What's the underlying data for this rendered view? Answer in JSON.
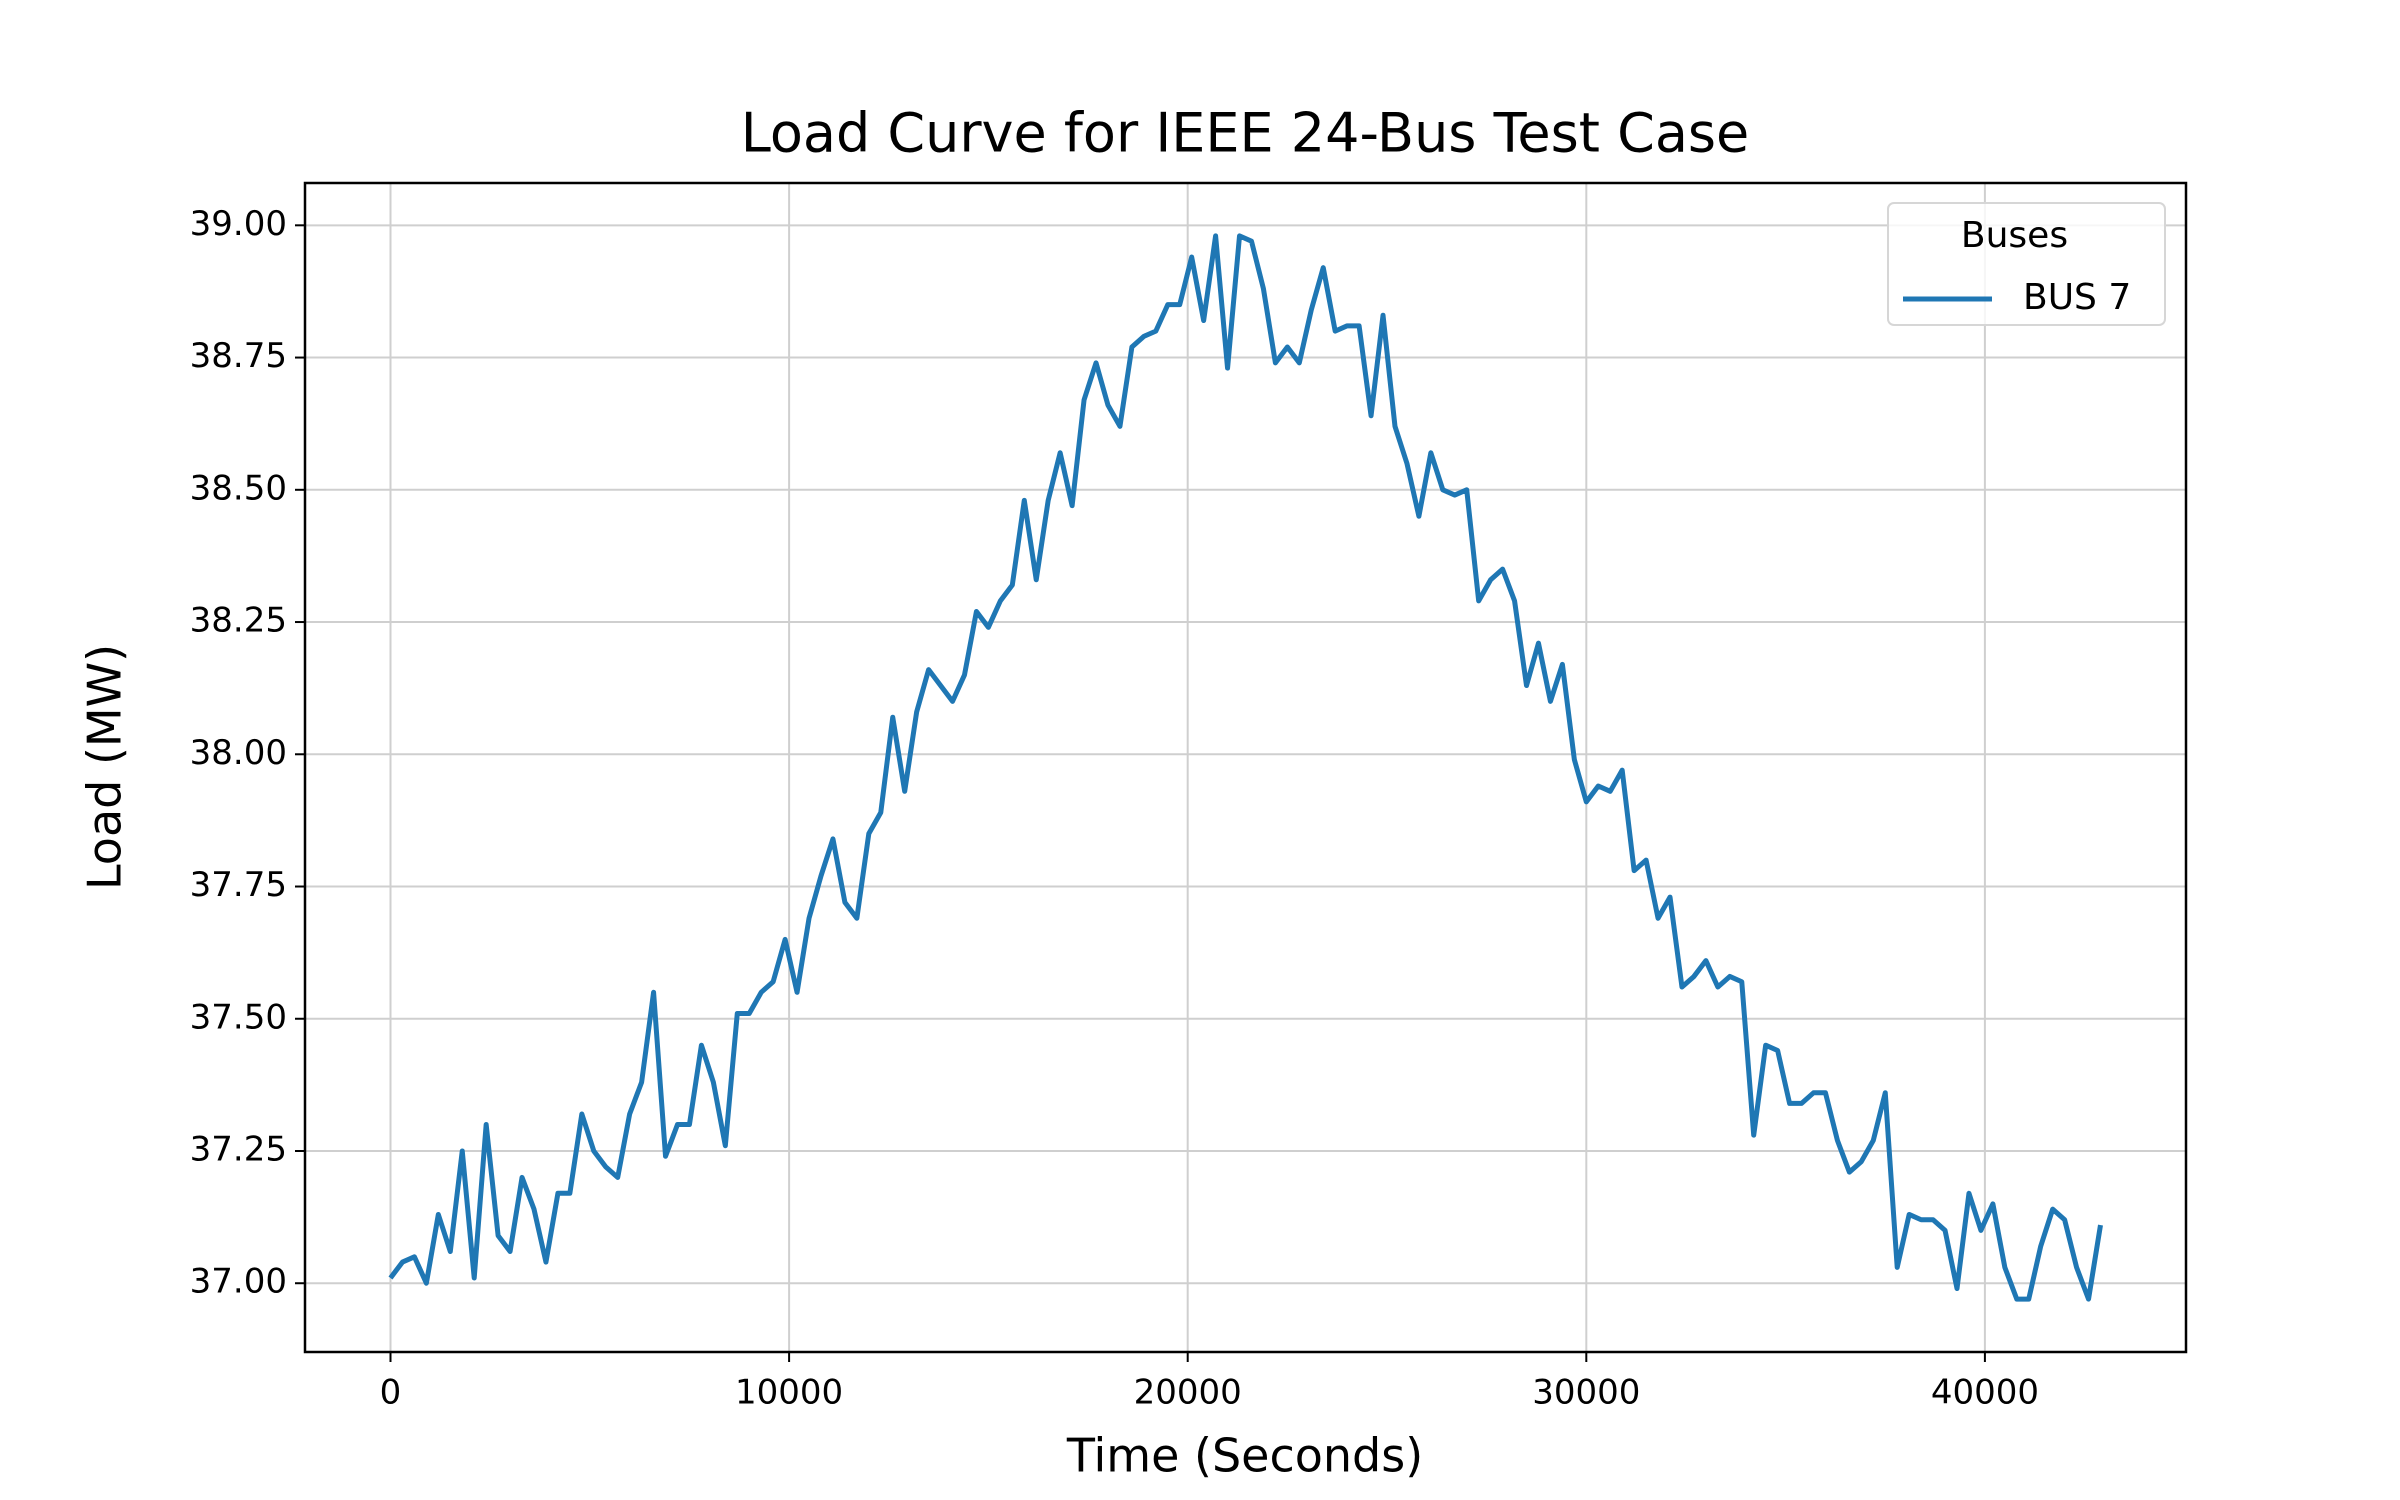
{
  "chart_data": {
    "type": "line",
    "title": "Load Curve for IEEE 24-Bus Test Case",
    "x_label": "Time (Seconds)",
    "y_label": "Load (MW)",
    "legend_title": "Buses",
    "legend_position": "upper right",
    "grid": true,
    "xlim": [
      -2145,
      45045
    ],
    "ylim": [
      36.87,
      39.08
    ],
    "xticks": [
      0,
      10000,
      20000,
      30000,
      40000
    ],
    "yticks": [
      {
        "value": 37.0,
        "label": "37.00"
      },
      {
        "value": 37.25,
        "label": "37.25"
      },
      {
        "value": 37.5,
        "label": "37.50"
      },
      {
        "value": 37.75,
        "label": "37.75"
      },
      {
        "value": 38.0,
        "label": "38.00"
      },
      {
        "value": 38.25,
        "label": "38.25"
      },
      {
        "value": 38.5,
        "label": "38.50"
      },
      {
        "value": 38.75,
        "label": "38.75"
      },
      {
        "value": 39.0,
        "label": "39.00"
      }
    ],
    "x": [
      0,
      300,
      600,
      900,
      1200,
      1500,
      1800,
      2100,
      2400,
      2700,
      3000,
      3300,
      3600,
      3900,
      4200,
      4500,
      4800,
      5100,
      5400,
      5700,
      6000,
      6300,
      6600,
      6900,
      7200,
      7500,
      7800,
      8100,
      8400,
      8700,
      9000,
      9300,
      9600,
      9900,
      10200,
      10500,
      10800,
      11100,
      11400,
      11700,
      12000,
      12300,
      12600,
      12900,
      13200,
      13500,
      13800,
      14100,
      14400,
      14700,
      15000,
      15300,
      15600,
      15900,
      16200,
      16500,
      16800,
      17100,
      17400,
      17700,
      18000,
      18300,
      18600,
      18900,
      19200,
      19500,
      19800,
      20100,
      20400,
      20700,
      21000,
      21300,
      21600,
      21900,
      22200,
      22500,
      22800,
      23100,
      23400,
      23700,
      24000,
      24300,
      24600,
      24900,
      25200,
      25500,
      25800,
      26100,
      26400,
      26700,
      27000,
      27300,
      27600,
      27900,
      28200,
      28500,
      28800,
      29100,
      29400,
      29700,
      30000,
      30300,
      30600,
      30900,
      31200,
      31500,
      31800,
      32100,
      32400,
      32700,
      33000,
      33300,
      33600,
      33900,
      34200,
      34500,
      34800,
      35100,
      35400,
      35700,
      36000,
      36300,
      36600,
      36900,
      37200,
      37500,
      37800,
      38100,
      38400,
      38700,
      39000,
      39300,
      39600,
      39900,
      40200,
      40500,
      40800,
      41100,
      41400,
      41700,
      42000,
      42300,
      42600,
      42900
    ],
    "series": [
      {
        "name": "BUS 7",
        "color": "#1f77b4",
        "values": [
          37.01,
          37.04,
          37.05,
          37.0,
          37.13,
          37.06,
          37.25,
          37.01,
          37.3,
          37.09,
          37.06,
          37.2,
          37.14,
          37.04,
          37.17,
          37.17,
          37.32,
          37.25,
          37.22,
          37.2,
          37.32,
          37.38,
          37.55,
          37.24,
          37.3,
          37.3,
          37.45,
          37.38,
          37.26,
          37.51,
          37.51,
          37.55,
          37.57,
          37.65,
          37.55,
          37.69,
          37.77,
          37.84,
          37.72,
          37.69,
          37.85,
          37.89,
          38.07,
          37.93,
          38.08,
          38.16,
          38.13,
          38.1,
          38.15,
          38.27,
          38.24,
          38.29,
          38.32,
          38.48,
          38.33,
          38.48,
          38.57,
          38.47,
          38.67,
          38.74,
          38.66,
          38.62,
          38.77,
          38.79,
          38.8,
          38.85,
          38.85,
          38.94,
          38.82,
          38.98,
          38.73,
          38.98,
          38.97,
          38.88,
          38.74,
          38.77,
          38.74,
          38.84,
          38.92,
          38.8,
          38.81,
          38.81,
          38.64,
          38.83,
          38.62,
          38.55,
          38.45,
          38.57,
          38.5,
          38.49,
          38.5,
          38.29,
          38.33,
          38.35,
          38.29,
          38.13,
          38.21,
          38.1,
          38.17,
          37.99,
          37.91,
          37.94,
          37.93,
          37.97,
          37.78,
          37.8,
          37.69,
          37.73,
          37.56,
          37.58,
          37.61,
          37.56,
          37.58,
          37.57,
          37.28,
          37.45,
          37.44,
          37.34,
          37.34,
          37.36,
          37.36,
          37.27,
          37.21,
          37.23,
          37.27,
          37.36,
          37.03,
          37.13,
          37.12,
          37.12,
          37.1,
          36.99,
          37.17,
          37.1,
          37.15,
          37.03,
          36.97,
          36.97,
          37.07,
          37.14,
          37.12,
          37.03,
          36.97,
          37.11
        ]
      }
    ]
  }
}
